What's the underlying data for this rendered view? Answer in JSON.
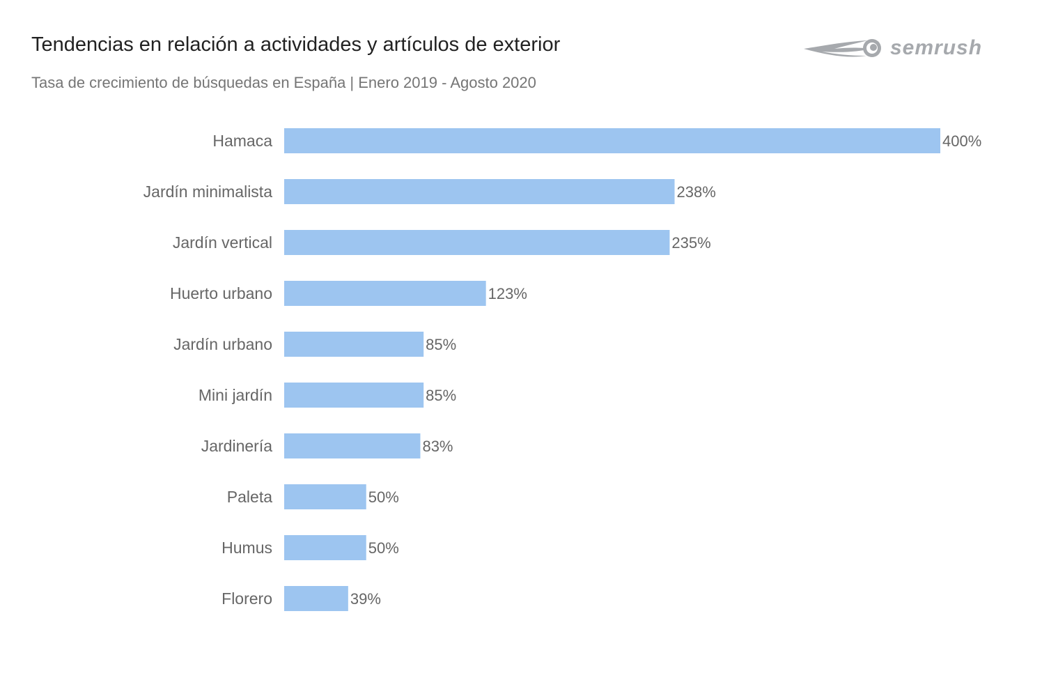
{
  "header": {
    "title": "Tendencias en relación a actividades y artículos de exterior",
    "subtitle": "Tasa de crecimiento de búsquedas en España | Enero 2019 - Agosto 2020"
  },
  "logo": {
    "text": "semrush",
    "icon": "semrush-fireball-icon",
    "color": "#a6a9ad"
  },
  "chart_data": {
    "type": "bar",
    "orientation": "horizontal",
    "categories": [
      "Hamaca",
      "Jardín minimalista",
      "Jardín vertical",
      "Huerto urbano",
      "Jardín urbano",
      "Mini jardín",
      "Jardinería",
      "Paleta",
      "Humus",
      "Florero"
    ],
    "values": [
      400,
      238,
      235,
      123,
      85,
      85,
      83,
      50,
      50,
      39
    ],
    "value_labels": [
      "400%",
      "238%",
      "235%",
      "123%",
      "85%",
      "85%",
      "83%",
      "50%",
      "50%",
      "39%"
    ],
    "unit": "%",
    "xlim": [
      0,
      400
    ],
    "grid": false,
    "legend": "none",
    "bar_color": "#9dc5f0"
  }
}
